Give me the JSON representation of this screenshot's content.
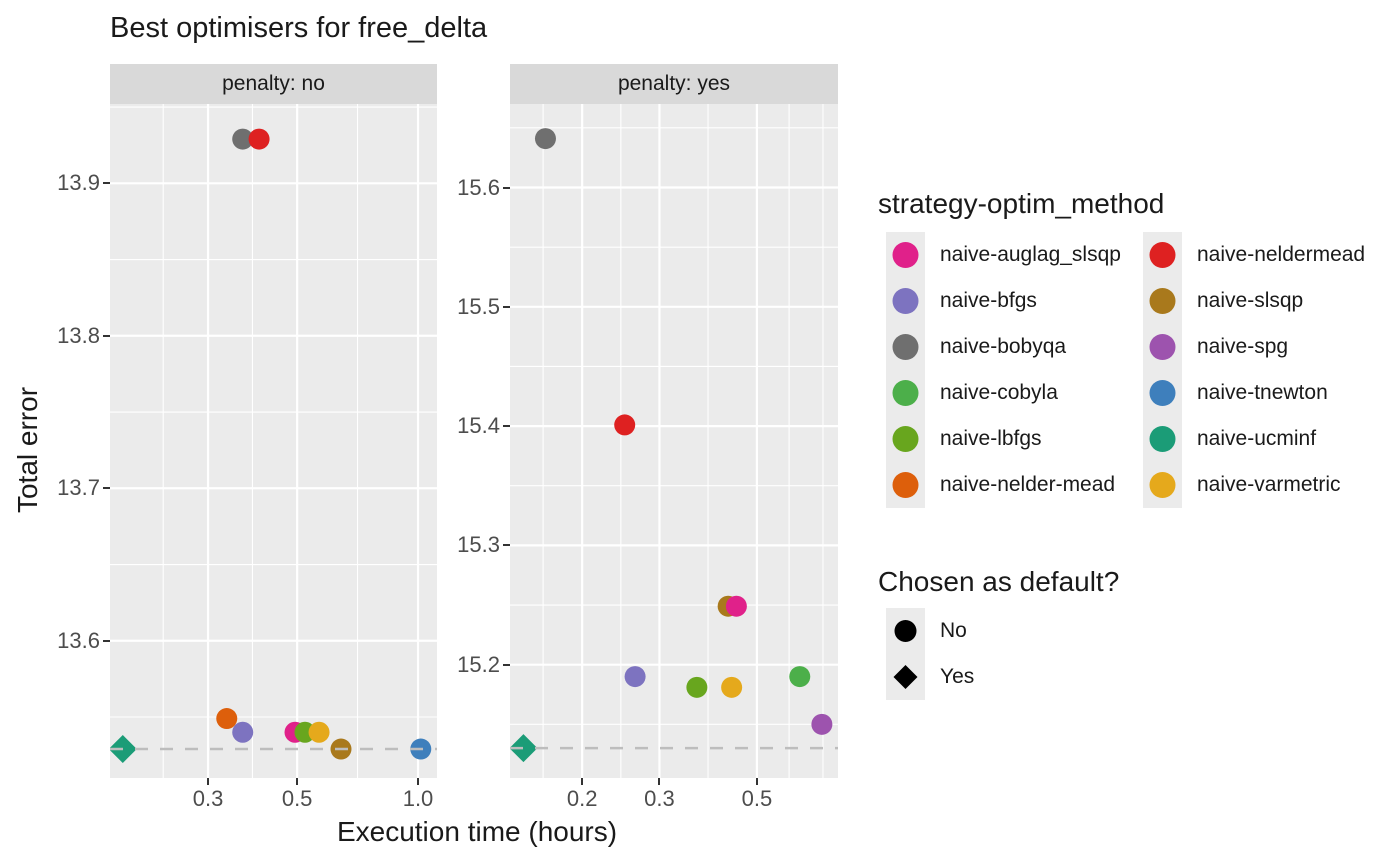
{
  "title": "Best optimisers for free_delta",
  "axes": {
    "x_label": "Execution time (hours)",
    "y_label": "Total error"
  },
  "legend_method": {
    "title": "strategy-optim_method",
    "items": [
      {
        "label": "naive-auglag_slsqp",
        "color": "#E0218A"
      },
      {
        "label": "naive-bfgs",
        "color": "#7D73C0"
      },
      {
        "label": "naive-bobyqa",
        "color": "#6F6F6F"
      },
      {
        "label": "naive-cobyla",
        "color": "#4CAF4A"
      },
      {
        "label": "naive-lbfgs",
        "color": "#68A61E"
      },
      {
        "label": "naive-nelder-mead",
        "color": "#DD5F0B"
      },
      {
        "label": "naive-neldermead",
        "color": "#DE2121"
      },
      {
        "label": "naive-slsqp",
        "color": "#A9791C"
      },
      {
        "label": "naive-spg",
        "color": "#9D53AE"
      },
      {
        "label": "naive-tnewton",
        "color": "#3E7FBC"
      },
      {
        "label": "naive-ucminf",
        "color": "#1B9C77"
      },
      {
        "label": "naive-varmetric",
        "color": "#E5A91C"
      }
    ]
  },
  "legend_default": {
    "title": "Chosen as default?",
    "items": [
      {
        "label": "No",
        "shape": "circle"
      },
      {
        "label": "Yes",
        "shape": "diamond"
      }
    ]
  },
  "chart_data": {
    "type": "scatter",
    "title": "Best optimisers for free_delta",
    "xlabel": "Execution time (hours)",
    "ylabel": "Total error",
    "x_scale": "log10",
    "grid": true,
    "legend_position": "right",
    "point_color_key": "strategy-optim_method",
    "point_shape_key": "Chosen as default?",
    "colors": {
      "panel_bg": "#EBEBEB",
      "strip_bg": "#D9D9D9",
      "gridline": "#FFFFFF",
      "dashed_line": "#BDBDBD",
      "tick_text": "#4D4D4D",
      "text": "#1A1A1A"
    },
    "facets": [
      {
        "label": "penalty: no",
        "x_domain": [
          0.171,
          1.115
        ],
        "y_domain": [
          13.51,
          13.952
        ],
        "x_ticks": [
          {
            "v": 0.3,
            "label": "0.3"
          },
          {
            "v": 0.5,
            "label": "0.5"
          },
          {
            "v": 1.0,
            "label": "1.0"
          }
        ],
        "x_minor": [
          0.232,
          0.387,
          0.707
        ],
        "y_ticks": [
          {
            "v": 13.9,
            "label": "13.9"
          },
          {
            "v": 13.8,
            "label": "13.8"
          },
          {
            "v": 13.7,
            "label": "13.7"
          },
          {
            "v": 13.6,
            "label": "13.6"
          }
        ],
        "y_minor": [
          13.95,
          13.85,
          13.75,
          13.65,
          13.55
        ],
        "default_line_y": 13.529,
        "points": [
          {
            "method": "naive-bobyqa",
            "hours": 0.366,
            "error": 13.929,
            "chosen_default": "No"
          },
          {
            "method": "naive-neldermead",
            "hours": 0.402,
            "error": 13.929,
            "chosen_default": "No"
          },
          {
            "method": "naive-nelder-mead",
            "hours": 0.334,
            "error": 13.549,
            "chosen_default": "No"
          },
          {
            "method": "naive-bfgs",
            "hours": 0.366,
            "error": 13.54,
            "chosen_default": "No"
          },
          {
            "method": "naive-auglag_slsqp",
            "hours": 0.494,
            "error": 13.54,
            "chosen_default": "No"
          },
          {
            "method": "naive-lbfgs",
            "hours": 0.523,
            "error": 13.54,
            "chosen_default": "No"
          },
          {
            "method": "naive-varmetric",
            "hours": 0.567,
            "error": 13.54,
            "chosen_default": "No"
          },
          {
            "method": "naive-slsqp",
            "hours": 0.643,
            "error": 13.529,
            "chosen_default": "No"
          },
          {
            "method": "naive-tnewton",
            "hours": 1.016,
            "error": 13.529,
            "chosen_default": "No"
          },
          {
            "method": "naive-ucminf",
            "hours": 0.184,
            "error": 13.529,
            "chosen_default": "Yes"
          }
        ]
      },
      {
        "label": "penalty: yes",
        "x_domain": [
          0.137,
          0.765
        ],
        "y_domain": [
          15.105,
          15.67
        ],
        "x_ticks": [
          {
            "v": 0.2,
            "label": "0.2"
          },
          {
            "v": 0.3,
            "label": "0.3"
          },
          {
            "v": 0.5,
            "label": "0.5"
          }
        ],
        "x_minor": [
          0.163,
          0.245,
          0.387,
          0.592,
          0.707
        ],
        "y_ticks": [
          {
            "v": 15.6,
            "label": "15.6"
          },
          {
            "v": 15.5,
            "label": "15.5"
          },
          {
            "v": 15.4,
            "label": "15.4"
          },
          {
            "v": 15.3,
            "label": "15.3"
          },
          {
            "v": 15.2,
            "label": "15.2"
          }
        ],
        "y_minor": [
          15.65,
          15.55,
          15.45,
          15.35,
          15.25,
          15.15
        ],
        "default_line_y": 15.13,
        "points": [
          {
            "method": "naive-bobyqa",
            "hours": 0.165,
            "error": 15.641,
            "chosen_default": "No"
          },
          {
            "method": "naive-neldermead",
            "hours": 0.25,
            "error": 15.401,
            "chosen_default": "No"
          },
          {
            "method": "naive-bfgs",
            "hours": 0.264,
            "error": 15.19,
            "chosen_default": "No"
          },
          {
            "method": "naive-slsqp",
            "hours": 0.43,
            "error": 15.249,
            "chosen_default": "No"
          },
          {
            "method": "naive-auglag_slsqp",
            "hours": 0.449,
            "error": 15.249,
            "chosen_default": "No"
          },
          {
            "method": "naive-lbfgs",
            "hours": 0.365,
            "error": 15.181,
            "chosen_default": "No"
          },
          {
            "method": "naive-varmetric",
            "hours": 0.438,
            "error": 15.181,
            "chosen_default": "No"
          },
          {
            "method": "naive-cobyla",
            "hours": 0.626,
            "error": 15.19,
            "chosen_default": "No"
          },
          {
            "method": "naive-spg",
            "hours": 0.703,
            "error": 15.15,
            "chosen_default": "No"
          },
          {
            "method": "naive-ucminf",
            "hours": 0.147,
            "error": 15.13,
            "chosen_default": "Yes"
          }
        ]
      }
    ]
  }
}
